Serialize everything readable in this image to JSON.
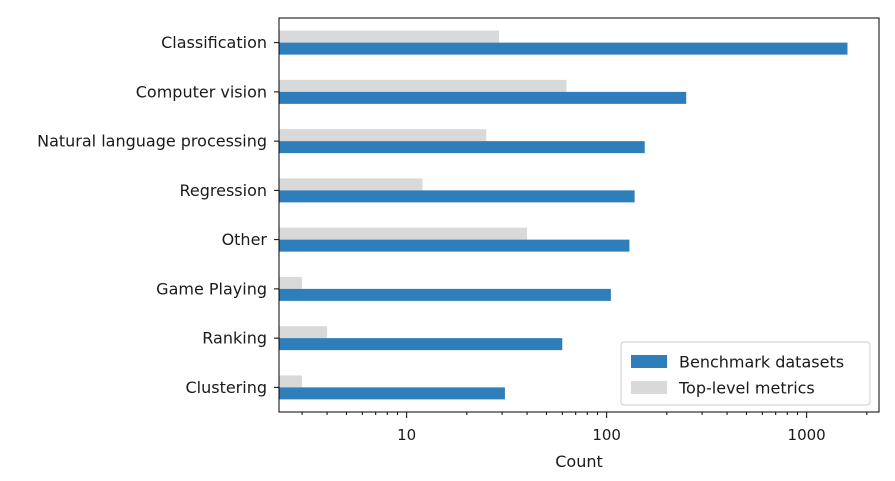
{
  "chart_data": {
    "type": "bar",
    "orientation": "horizontal",
    "title": "",
    "xlabel": "Count",
    "ylabel": "",
    "xscale": "log",
    "xlim": [
      2.3,
      2300
    ],
    "xticks": [
      10,
      100,
      1000
    ],
    "xtick_labels": [
      "10",
      "100",
      "1000"
    ],
    "categories": [
      "Classification",
      "Computer vision",
      "Natural language processing",
      "Regression",
      "Other",
      "Game Playing",
      "Ranking",
      "Clustering"
    ],
    "series": [
      {
        "name": "Benchmark datasets",
        "color": "#2f7ebc",
        "values": [
          1600,
          250,
          155,
          138,
          130,
          105,
          60,
          31
        ]
      },
      {
        "name": "Top-level metrics",
        "color": "#d9d9d9",
        "values": [
          29,
          63,
          25,
          12,
          40,
          3,
          4,
          3
        ]
      }
    ],
    "grid": false,
    "legend_position": "lower-right"
  }
}
